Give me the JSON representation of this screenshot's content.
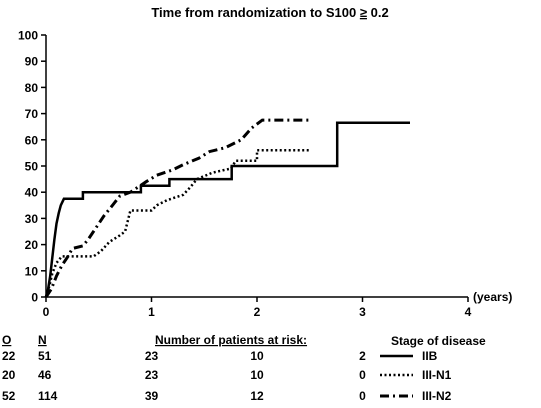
{
  "chart_data": {
    "type": "line",
    "title_prefix": "Time from randomization to S100 ",
    "title_symbol": "≥",
    "title_suffix": " 0.2",
    "xlabel": "(years)",
    "xlim": [
      0,
      4
    ],
    "ylim": [
      0,
      100
    ],
    "x_ticks": [
      "0",
      "1",
      "2",
      "3",
      "4"
    ],
    "y_ticks": [
      "0",
      "10",
      "20",
      "30",
      "40",
      "50",
      "60",
      "70",
      "80",
      "90",
      "100"
    ],
    "series": [
      {
        "name": "IIB",
        "style": "solid",
        "points": [
          [
            0,
            0
          ],
          [
            0.02,
            3
          ],
          [
            0.04,
            8
          ],
          [
            0.06,
            15
          ],
          [
            0.08,
            22
          ],
          [
            0.1,
            28
          ],
          [
            0.12,
            32
          ],
          [
            0.14,
            35
          ],
          [
            0.17,
            37.5
          ],
          [
            0.35,
            37.5
          ],
          [
            0.35,
            40
          ],
          [
            0.9,
            40
          ],
          [
            0.9,
            42.5
          ],
          [
            1.17,
            42.5
          ],
          [
            1.17,
            45
          ],
          [
            1.76,
            45
          ],
          [
            1.76,
            50
          ],
          [
            2.76,
            50
          ],
          [
            2.76,
            66.5
          ],
          [
            3.45,
            66.5
          ]
        ]
      },
      {
        "name": "III-N1",
        "style": "dotted",
        "points": [
          [
            0,
            0
          ],
          [
            0.03,
            4
          ],
          [
            0.06,
            9
          ],
          [
            0.1,
            13
          ],
          [
            0.15,
            15.5
          ],
          [
            0.45,
            15.5
          ],
          [
            0.52,
            17.5
          ],
          [
            0.6,
            21
          ],
          [
            0.7,
            23.5
          ],
          [
            0.75,
            25
          ],
          [
            0.8,
            33
          ],
          [
            1.0,
            33
          ],
          [
            1.05,
            35
          ],
          [
            1.15,
            37
          ],
          [
            1.3,
            39
          ],
          [
            1.37,
            42
          ],
          [
            1.43,
            45
          ],
          [
            1.58,
            47.5
          ],
          [
            1.75,
            49
          ],
          [
            1.8,
            52
          ],
          [
            2.0,
            52
          ],
          [
            2.0,
            56
          ],
          [
            2.5,
            56
          ]
        ]
      },
      {
        "name": "III-N2",
        "style": "dashdot",
        "points": [
          [
            0,
            0
          ],
          [
            0.05,
            3
          ],
          [
            0.1,
            8
          ],
          [
            0.15,
            12
          ],
          [
            0.2,
            15
          ],
          [
            0.25,
            18.5
          ],
          [
            0.35,
            19.5
          ],
          [
            0.4,
            22
          ],
          [
            0.45,
            25
          ],
          [
            0.5,
            28
          ],
          [
            0.55,
            31
          ],
          [
            0.63,
            35
          ],
          [
            0.7,
            38.5
          ],
          [
            0.8,
            40
          ],
          [
            0.95,
            44
          ],
          [
            1.05,
            46.5
          ],
          [
            1.2,
            48.5
          ],
          [
            1.3,
            50.5
          ],
          [
            1.45,
            53
          ],
          [
            1.55,
            55.5
          ],
          [
            1.7,
            57
          ],
          [
            1.85,
            60
          ],
          [
            1.95,
            64.5
          ],
          [
            2.05,
            67.5
          ],
          [
            2.5,
            67.5
          ]
        ]
      }
    ]
  },
  "risk_table": {
    "header_o": "O",
    "header_n": "N",
    "header_title": "Number of patients at risk:",
    "legend_title": "Stage of disease",
    "rows": [
      {
        "o": "22",
        "n": "51",
        "at_risk": [
          "23",
          "10",
          "2"
        ],
        "stage": "IIB"
      },
      {
        "o": "20",
        "n": "46",
        "at_risk": [
          "23",
          "10",
          "0"
        ],
        "stage": "III-N1"
      },
      {
        "o": "52",
        "n": "114",
        "at_risk": [
          "39",
          "12",
          "0"
        ],
        "stage": "III-N2"
      }
    ]
  }
}
